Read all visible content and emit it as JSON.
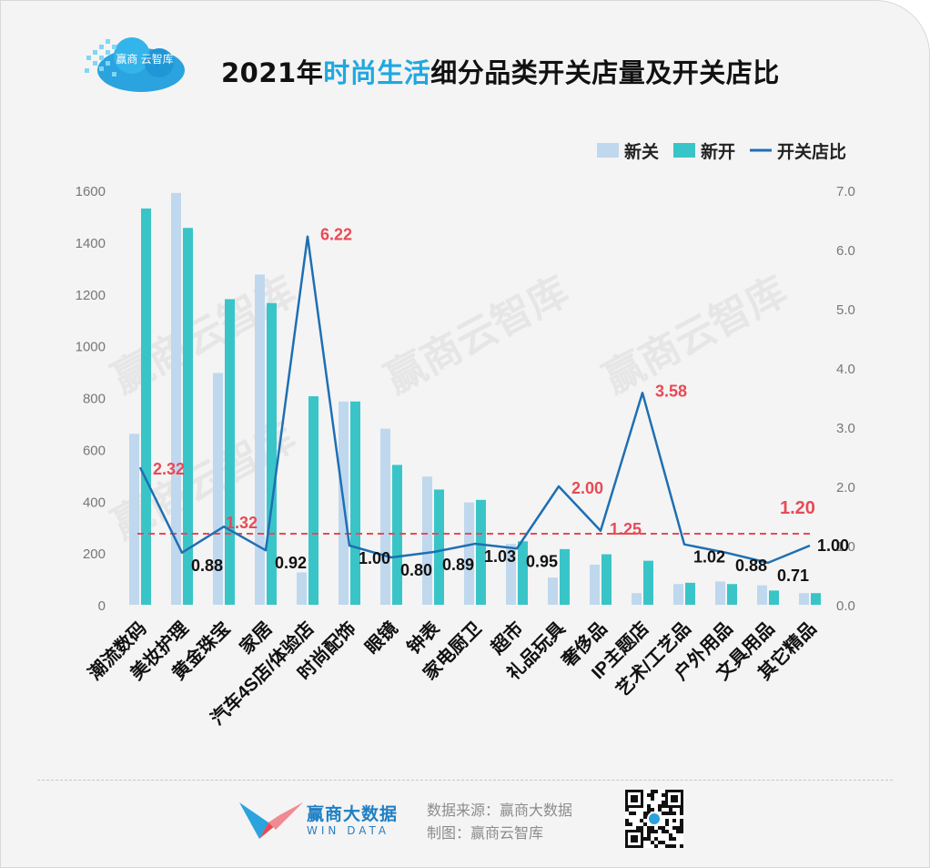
{
  "header": {
    "logo_text": "赢商 云智库",
    "title_prefix": "2021年",
    "title_highlight": "时尚生活",
    "title_suffix": "细分品类开关店量及开关店比"
  },
  "colors": {
    "closed": "#bfd8ee",
    "opened": "#39c5c8",
    "ratio": "#1f6fb3",
    "avg_line": "#e84a55",
    "title_highlight": "#1fa8e0",
    "watermark": "#dcdcdc"
  },
  "watermark_text": "赢商云智库",
  "chart_data": {
    "type": "bar",
    "title": "2021年时尚生活细分品类开关店量及开关店比",
    "categories": [
      "潮流数码",
      "美妆护理",
      "黄金珠宝",
      "家居",
      "汽车4S店/体验店",
      "时尚配饰",
      "眼镜",
      "钟表",
      "家电厨卫",
      "超市",
      "礼品玩具",
      "奢侈品",
      "IP主题店",
      "艺术/工艺品",
      "户外用品",
      "文具用品",
      "其它精品"
    ],
    "series": [
      {
        "name": "新关",
        "axis": "left",
        "values": [
          660,
          1590,
          895,
          1275,
          125,
          785,
          680,
          495,
          395,
          235,
          105,
          155,
          45,
          80,
          90,
          75,
          45
        ]
      },
      {
        "name": "新开",
        "axis": "left",
        "values": [
          1530,
          1455,
          1180,
          1165,
          805,
          785,
          540,
          445,
          405,
          245,
          215,
          195,
          170,
          85,
          80,
          55,
          45
        ]
      },
      {
        "name": "开关店比",
        "type": "line",
        "axis": "right",
        "values": [
          2.32,
          0.88,
          1.32,
          0.92,
          6.22,
          1.0,
          0.8,
          0.89,
          1.03,
          0.95,
          2.0,
          1.25,
          3.58,
          1.02,
          0.88,
          0.71,
          1.0
        ]
      }
    ],
    "data_labels": [
      "2.32",
      "0.88",
      "1.32",
      "0.92",
      "6.22",
      "1.00",
      "0.80",
      "0.89",
      "1.03",
      "0.95",
      "2.00",
      "1.25",
      "3.58",
      "1.02",
      "0.88",
      "0.71",
      "1.00"
    ],
    "highlighted_labels": [
      0,
      2,
      4,
      10,
      11,
      12
    ],
    "average_line": {
      "value": 1.2,
      "label": "1.20"
    },
    "left_axis": {
      "ylim": [
        0,
        1600
      ],
      "ticks": [
        "0",
        "200",
        "400",
        "600",
        "800",
        "1000",
        "1200",
        "1400",
        "1600"
      ]
    },
    "right_axis": {
      "ylim": [
        0,
        7
      ],
      "ticks": [
        "0.0",
        "1.0",
        "2.0",
        "3.0",
        "4.0",
        "5.0",
        "6.0",
        "7.0"
      ]
    },
    "legend": {
      "position": "top-right",
      "items": [
        "新关",
        "新开",
        "开关店比"
      ]
    }
  },
  "footer": {
    "brand_cn": "赢商大数据",
    "brand_en": "WIN DATA",
    "source_line": "数据来源：赢商大数据",
    "made_by_line": "制图：赢商云智库"
  }
}
